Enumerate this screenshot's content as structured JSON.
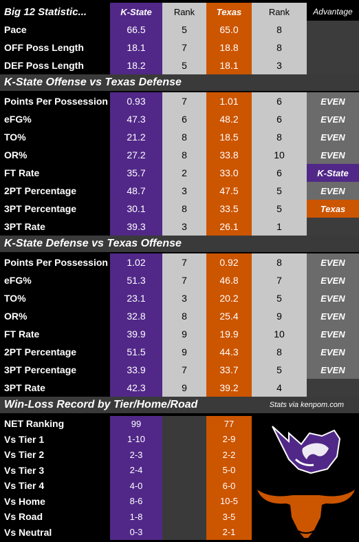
{
  "header": {
    "title": "Big 12 Statistic...",
    "team1": "K-State",
    "rank1": "Rank",
    "team2": "Texas",
    "rank2": "Rank",
    "advantage": "Advantage"
  },
  "pace_rows": [
    {
      "label": "Pace",
      "ks": "66.5",
      "ks_rank": "5",
      "tx": "65.0",
      "tx_rank": "8"
    },
    {
      "label": "OFF Poss Length",
      "ks": "18.1",
      "ks_rank": "7",
      "tx": "18.8",
      "tx_rank": "8"
    },
    {
      "label": "DEF Poss Length",
      "ks": "18.2",
      "ks_rank": "5",
      "tx": "18.1",
      "tx_rank": "3"
    }
  ],
  "section1": {
    "title": "K-State Offense vs Texas Defense",
    "rows": [
      {
        "label": "Points Per Possession",
        "ks": "0.93",
        "ks_rank": "7",
        "tx": "1.01",
        "tx_rank": "6",
        "adv": "EVEN",
        "adv_type": "even"
      },
      {
        "label": "eFG%",
        "ks": "47.3",
        "ks_rank": "6",
        "tx": "48.2",
        "tx_rank": "6",
        "adv": "EVEN",
        "adv_type": "even"
      },
      {
        "label": "TO%",
        "ks": "21.2",
        "ks_rank": "8",
        "tx": "18.5",
        "tx_rank": "8",
        "adv": "EVEN",
        "adv_type": "even"
      },
      {
        "label": "OR%",
        "ks": "27.2",
        "ks_rank": "8",
        "tx": "33.8",
        "tx_rank": "10",
        "adv": "EVEN",
        "adv_type": "even"
      },
      {
        "label": "FT Rate",
        "ks": "35.7",
        "ks_rank": "2",
        "tx": "33.0",
        "tx_rank": "6",
        "adv": "K-State",
        "adv_type": "kst"
      },
      {
        "label": "2PT Percentage",
        "ks": "48.7",
        "ks_rank": "3",
        "tx": "47.5",
        "tx_rank": "5",
        "adv": "EVEN",
        "adv_type": "even"
      },
      {
        "label": "3PT Percentage",
        "ks": "30.1",
        "ks_rank": "8",
        "tx": "33.5",
        "tx_rank": "5",
        "adv": "Texas",
        "adv_type": "tex"
      },
      {
        "label": "3PT Rate",
        "ks": "39.3",
        "ks_rank": "3",
        "tx": "26.1",
        "tx_rank": "1",
        "adv": "",
        "adv_type": "empty"
      }
    ]
  },
  "section2": {
    "title": "K-State Defense vs Texas Offense",
    "rows": [
      {
        "label": "Points Per Possession",
        "ks": "1.02",
        "ks_rank": "7",
        "tx": "0.92",
        "tx_rank": "8",
        "adv": "EVEN",
        "adv_type": "even"
      },
      {
        "label": "eFG%",
        "ks": "51.3",
        "ks_rank": "7",
        "tx": "46.8",
        "tx_rank": "7",
        "adv": "EVEN",
        "adv_type": "even"
      },
      {
        "label": "TO%",
        "ks": "23.1",
        "ks_rank": "3",
        "tx": "20.2",
        "tx_rank": "5",
        "adv": "EVEN",
        "adv_type": "even"
      },
      {
        "label": "OR%",
        "ks": "32.8",
        "ks_rank": "8",
        "tx": "25.4",
        "tx_rank": "9",
        "adv": "EVEN",
        "adv_type": "even"
      },
      {
        "label": "FT Rate",
        "ks": "39.9",
        "ks_rank": "9",
        "tx": "19.9",
        "tx_rank": "10",
        "adv": "EVEN",
        "adv_type": "even"
      },
      {
        "label": "2PT Percentage",
        "ks": "51.5",
        "ks_rank": "9",
        "tx": "44.3",
        "tx_rank": "8",
        "adv": "EVEN",
        "adv_type": "even"
      },
      {
        "label": "3PT Percentage",
        "ks": "33.9",
        "ks_rank": "7",
        "tx": "33.7",
        "tx_rank": "5",
        "adv": "EVEN",
        "adv_type": "even"
      },
      {
        "label": "3PT Rate",
        "ks": "42.3",
        "ks_rank": "9",
        "tx": "39.2",
        "tx_rank": "4",
        "adv": "",
        "adv_type": "empty"
      }
    ]
  },
  "section3": {
    "title": "Win-Loss Record by Tier/Home/Road",
    "source": "Stats via kenpom.com",
    "rows": [
      {
        "label": "NET Ranking",
        "ks": "99",
        "tx": "77"
      },
      {
        "label": "Vs Tier 1",
        "ks": "1-10",
        "tx": "2-9"
      },
      {
        "label": "Vs Tier 2",
        "ks": "2-3",
        "tx": "2-2"
      },
      {
        "label": "Vs Tier 3",
        "ks": "2-4",
        "tx": "5-0"
      },
      {
        "label": "Vs Tier 4",
        "ks": "4-0",
        "tx": "6-0"
      },
      {
        "label": "Vs Home",
        "ks": "8-6",
        "tx": "10-5"
      },
      {
        "label": "Vs Road",
        "ks": "1-8",
        "tx": "3-5"
      },
      {
        "label": "Vs Neutral",
        "ks": "0-3",
        "tx": "2-1"
      }
    ]
  },
  "logos": {
    "kstate": "powercat-logo-icon",
    "texas": "longhorn-logo-icon"
  },
  "colors": {
    "kstate_purple": "#512888",
    "texas_orange": "#cc5500",
    "rank_gray": "#c8c8c8",
    "even_gray": "#6b6b6b"
  }
}
